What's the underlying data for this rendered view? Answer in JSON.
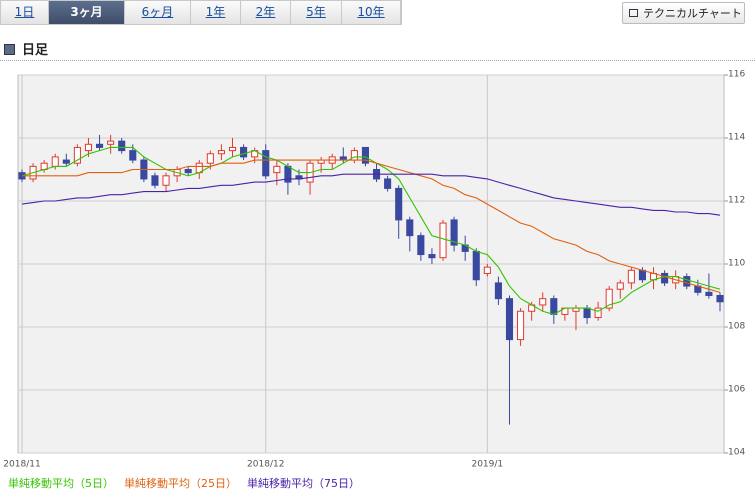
{
  "ui": {
    "tabs": [
      "1日",
      "3ヶ月",
      "6ヶ月",
      "1年",
      "2年",
      "5年",
      "10年"
    ],
    "selected_tab": 1,
    "button": "テクニカルチャート",
    "header": "日足"
  },
  "chart_data": {
    "type": "candlestick",
    "categories": [
      "2018/11",
      null,
      null,
      null,
      null,
      null,
      null,
      null,
      null,
      null,
      null,
      null,
      null,
      null,
      null,
      null,
      null,
      null,
      null,
      null,
      null,
      null,
      "2018/12",
      null,
      null,
      null,
      null,
      null,
      null,
      null,
      null,
      null,
      null,
      null,
      null,
      null,
      null,
      null,
      null,
      null,
      null,
      null,
      "2019/1",
      null,
      null,
      null,
      null,
      null,
      null,
      null,
      null,
      null,
      null,
      null,
      null,
      null,
      null,
      null,
      null,
      null,
      null,
      null,
      null,
      null
    ],
    "open": [
      112.9,
      112.7,
      113.0,
      113.1,
      113.3,
      113.2,
      113.6,
      113.8,
      113.8,
      113.9,
      113.6,
      113.3,
      112.8,
      112.5,
      112.8,
      113.0,
      112.9,
      113.2,
      113.5,
      113.6,
      113.7,
      113.4,
      113.6,
      112.9,
      113.1,
      112.8,
      112.6,
      113.2,
      113.2,
      113.4,
      113.3,
      113.7,
      113.0,
      112.7,
      112.4,
      111.4,
      110.9,
      110.3,
      110.2,
      111.4,
      110.6,
      110.4,
      109.7,
      109.4,
      108.9,
      107.6,
      108.5,
      108.7,
      108.9,
      108.4,
      108.5,
      108.6,
      108.3,
      108.6,
      109.2,
      109.4,
      109.8,
      109.5,
      109.7,
      109.4,
      109.6,
      109.3,
      109.1,
      109.0
    ],
    "high": [
      113.0,
      113.2,
      113.3,
      113.5,
      113.5,
      113.8,
      114.0,
      114.1,
      114.1,
      114.0,
      113.8,
      113.4,
      112.9,
      112.9,
      113.1,
      113.1,
      113.3,
      113.6,
      113.8,
      114.0,
      113.8,
      113.7,
      113.8,
      113.3,
      113.2,
      113.0,
      113.3,
      113.4,
      113.5,
      113.7,
      113.7,
      113.7,
      113.2,
      112.8,
      112.5,
      111.5,
      111.0,
      110.5,
      111.4,
      111.5,
      110.9,
      110.5,
      110.0,
      109.6,
      109.0,
      108.6,
      108.8,
      109.1,
      109.0,
      108.6,
      108.7,
      108.7,
      108.8,
      109.3,
      109.5,
      109.9,
      109.9,
      109.9,
      109.8,
      109.8,
      109.7,
      109.5,
      109.7,
      109.1
    ],
    "low": [
      112.6,
      112.6,
      112.9,
      113.0,
      113.1,
      113.1,
      113.4,
      113.6,
      113.5,
      113.5,
      113.2,
      112.6,
      112.4,
      112.3,
      112.6,
      112.8,
      112.7,
      113.0,
      113.3,
      113.4,
      113.3,
      113.2,
      112.7,
      112.5,
      112.2,
      112.5,
      112.2,
      112.9,
      113.0,
      113.2,
      113.2,
      113.1,
      112.6,
      112.3,
      110.8,
      110.4,
      110.1,
      110.0,
      110.1,
      110.4,
      110.1,
      109.3,
      109.6,
      108.7,
      104.9,
      107.4,
      108.2,
      108.5,
      108.1,
      108.2,
      107.9,
      108.1,
      108.2,
      108.5,
      108.9,
      109.2,
      109.4,
      109.2,
      109.3,
      109.2,
      109.2,
      109.0,
      108.9,
      108.5
    ],
    "close": [
      112.7,
      113.1,
      113.2,
      113.4,
      113.2,
      113.7,
      113.8,
      113.7,
      113.9,
      113.6,
      113.3,
      112.7,
      112.5,
      112.8,
      113.0,
      112.9,
      113.2,
      113.5,
      113.6,
      113.7,
      113.4,
      113.6,
      112.8,
      113.1,
      112.6,
      112.7,
      113.2,
      113.3,
      113.4,
      113.3,
      113.6,
      113.2,
      112.7,
      112.4,
      111.4,
      110.9,
      110.3,
      110.2,
      111.3,
      110.6,
      110.4,
      109.5,
      109.9,
      108.9,
      107.6,
      108.5,
      108.7,
      108.9,
      108.4,
      108.6,
      108.6,
      108.3,
      108.6,
      109.2,
      109.4,
      109.8,
      109.5,
      109.7,
      109.4,
      109.6,
      109.3,
      109.1,
      109.0,
      108.8
    ],
    "up_color": "#e03a2f",
    "down_color": "#3a48a0",
    "series": [
      {
        "name": "単純移動平均（5日）",
        "color": "#33c400",
        "values": [
          112.8,
          112.9,
          113.0,
          113.1,
          113.1,
          113.3,
          113.5,
          113.6,
          113.7,
          113.7,
          113.7,
          113.4,
          113.2,
          113.0,
          112.9,
          112.8,
          112.9,
          113.1,
          113.2,
          113.4,
          113.5,
          113.6,
          113.4,
          113.3,
          113.1,
          112.9,
          112.9,
          113.0,
          113.0,
          113.2,
          113.4,
          113.4,
          113.2,
          113.0,
          112.7,
          112.1,
          111.5,
          110.9,
          110.8,
          110.7,
          110.6,
          110.4,
          110.3,
          109.9,
          109.3,
          108.9,
          108.7,
          108.5,
          108.4,
          108.6,
          108.6,
          108.6,
          108.5,
          108.7,
          108.8,
          109.1,
          109.3,
          109.5,
          109.6,
          109.6,
          109.5,
          109.4,
          109.3,
          109.2
        ]
      },
      {
        "name": "単純移動平均（25日）",
        "color": "#e0600e",
        "values": [
          112.8,
          112.8,
          112.8,
          112.8,
          112.8,
          112.8,
          112.9,
          112.9,
          112.9,
          112.9,
          113.0,
          113.0,
          113.0,
          113.0,
          113.0,
          113.1,
          113.1,
          113.1,
          113.2,
          113.2,
          113.2,
          113.3,
          113.3,
          113.3,
          113.3,
          113.3,
          113.3,
          113.3,
          113.3,
          113.3,
          113.3,
          113.3,
          113.2,
          113.1,
          113.0,
          112.9,
          112.8,
          112.7,
          112.5,
          112.4,
          112.2,
          112.1,
          111.9,
          111.7,
          111.5,
          111.3,
          111.2,
          111.0,
          110.8,
          110.7,
          110.6,
          110.4,
          110.3,
          110.1,
          110.0,
          109.9,
          109.8,
          109.7,
          109.6,
          109.5,
          109.4,
          109.3,
          109.2,
          109.1
        ]
      },
      {
        "name": "単純移動平均（75日）",
        "color": "#4a22a8",
        "values": [
          111.9,
          111.95,
          112.0,
          112.0,
          112.05,
          112.1,
          112.1,
          112.15,
          112.2,
          112.2,
          112.25,
          112.3,
          112.3,
          112.3,
          112.35,
          112.4,
          112.4,
          112.45,
          112.5,
          112.5,
          112.55,
          112.6,
          112.6,
          112.65,
          112.7,
          112.7,
          112.75,
          112.8,
          112.8,
          112.85,
          112.85,
          112.85,
          112.85,
          112.85,
          112.85,
          112.85,
          112.85,
          112.85,
          112.8,
          112.8,
          112.8,
          112.75,
          112.7,
          112.6,
          112.5,
          112.4,
          112.3,
          112.2,
          112.1,
          112.05,
          112.0,
          111.95,
          111.9,
          111.85,
          111.8,
          111.8,
          111.75,
          111.7,
          111.7,
          111.65,
          111.65,
          111.6,
          111.6,
          111.55
        ]
      }
    ],
    "ylim": [
      104,
      116
    ],
    "yticks": [
      104,
      106,
      108,
      110,
      112,
      114,
      116
    ],
    "grid": true
  }
}
